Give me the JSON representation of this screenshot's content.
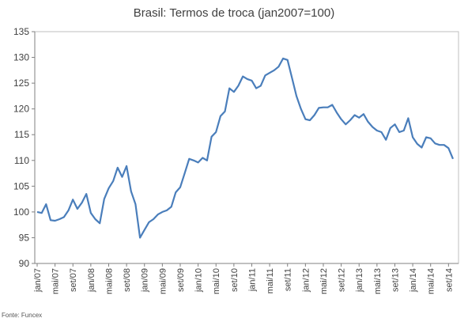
{
  "chart_data": {
    "type": "line",
    "title": "Brasil: Termos de troca (jan2007=100)",
    "source": "Fonte: Funcex",
    "xlabel": "",
    "ylabel": "",
    "ylim": [
      90,
      135
    ],
    "yticks": [
      "90",
      "95",
      "100",
      "105",
      "110",
      "115",
      "120",
      "125",
      "130",
      "135"
    ],
    "xticks": [
      "jan/07",
      "mai/07",
      "set/07",
      "jan/08",
      "mai/08",
      "set/08",
      "jan/09",
      "mai/09",
      "set/09",
      "jan/10",
      "mai/10",
      "set/10",
      "jan/11",
      "mai/11",
      "set/11",
      "jan/12",
      "mai/12",
      "set/12",
      "jan/13",
      "mai/13",
      "set/13",
      "jan/14",
      "mai/14",
      "set/14"
    ],
    "grid": false,
    "legend": "none",
    "color": "#4a7ebb",
    "series": [
      {
        "x": [
          "jan/07",
          "fev/07",
          "mar/07",
          "abr/07",
          "mai/07",
          "jun/07",
          "jul/07",
          "ago/07",
          "set/07",
          "out/07",
          "nov/07",
          "dez/07",
          "jan/08",
          "fev/08",
          "mar/08",
          "abr/08",
          "mai/08",
          "jun/08",
          "jul/08",
          "ago/08",
          "set/08",
          "out/08",
          "nov/08",
          "dez/08",
          "jan/09",
          "fev/09",
          "mar/09",
          "abr/09",
          "mai/09",
          "jun/09",
          "jul/09",
          "ago/09",
          "set/09",
          "out/09",
          "nov/09",
          "dez/09",
          "jan/10",
          "fev/10",
          "mar/10",
          "abr/10",
          "mai/10",
          "jun/10",
          "jul/10",
          "ago/10",
          "set/10",
          "out/10",
          "nov/10",
          "dez/10",
          "jan/11",
          "fev/11",
          "mar/11",
          "abr/11",
          "mai/11",
          "jun/11",
          "jul/11",
          "ago/11",
          "set/11",
          "out/11",
          "nov/11",
          "dez/11",
          "jan/12",
          "fev/12",
          "mar/12",
          "abr/12",
          "mai/12",
          "jun/12",
          "jul/12",
          "ago/12",
          "set/12",
          "out/12",
          "nov/12",
          "dez/12",
          "jan/13",
          "fev/13",
          "mar/13",
          "abr/13",
          "mai/13",
          "jun/13",
          "jul/13",
          "ago/13",
          "set/13",
          "out/13",
          "nov/13",
          "dez/13",
          "jan/14",
          "fev/14",
          "mar/14",
          "abr/14",
          "mai/14",
          "jun/14",
          "jul/14",
          "ago/14",
          "set/14",
          "out/14"
        ],
        "values": [
          100.0,
          99.8,
          101.5,
          98.4,
          98.3,
          98.6,
          99.0,
          100.3,
          102.4,
          100.6,
          101.8,
          103.5,
          99.8,
          98.6,
          97.8,
          102.5,
          104.6,
          106.0,
          108.6,
          106.8,
          108.9,
          104.0,
          101.5,
          95.0,
          96.5,
          98.0,
          98.6,
          99.5,
          100.0,
          100.3,
          101.0,
          103.8,
          104.8,
          107.5,
          110.3,
          110.0,
          109.6,
          110.5,
          110.0,
          114.6,
          115.5,
          118.6,
          119.5,
          124.0,
          123.3,
          124.5,
          126.3,
          125.8,
          125.5,
          124.0,
          124.5,
          126.5,
          127.0,
          127.5,
          128.2,
          129.8,
          129.5,
          126.0,
          122.5,
          120.0,
          118.0,
          117.8,
          118.8,
          120.2,
          120.3,
          120.3,
          120.8,
          119.3,
          118.0,
          117.0,
          117.8,
          118.8,
          118.3,
          119.0,
          117.5,
          116.5,
          115.8,
          115.5,
          114.0,
          116.3,
          117.0,
          115.5,
          115.8,
          118.2,
          114.5,
          113.2,
          112.5,
          114.5,
          114.3,
          113.3,
          113.0,
          113.0,
          112.4,
          110.3
        ]
      }
    ]
  }
}
